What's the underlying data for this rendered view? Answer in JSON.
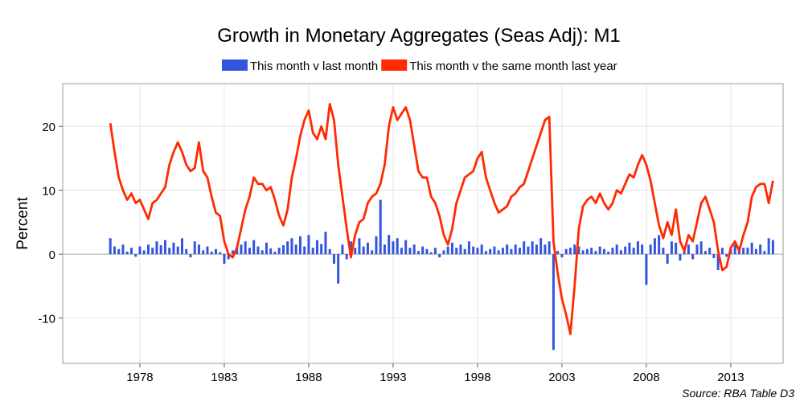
{
  "chart_data": {
    "type": "combo",
    "title": "Growth in Monetary Aggregates (Seas Adj): M1",
    "y_label": "Percent",
    "source": "Source: RBA Table D3",
    "xlim": [
      1973.43,
      2016.1
    ],
    "xticks": [
      1978,
      1983,
      1988,
      1993,
      1998,
      2003,
      2008,
      2013
    ],
    "ylim": [
      -17.1,
      26.7
    ],
    "yticks": [
      -10,
      0,
      10,
      20
    ],
    "grid": true,
    "legend": "top",
    "x": [
      1976.25,
      1976.5,
      1976.75,
      1977,
      1977.25,
      1977.5,
      1977.75,
      1978,
      1978.25,
      1978.5,
      1978.75,
      1979,
      1979.25,
      1979.5,
      1979.75,
      1980,
      1980.25,
      1980.5,
      1980.75,
      1981,
      1981.25,
      1981.5,
      1981.75,
      1982,
      1982.25,
      1982.5,
      1982.75,
      1983,
      1983.25,
      1983.5,
      1983.75,
      1984,
      1984.25,
      1984.5,
      1984.75,
      1985,
      1985.25,
      1985.5,
      1985.75,
      1986,
      1986.25,
      1986.5,
      1986.75,
      1987,
      1987.25,
      1987.5,
      1987.75,
      1988,
      1988.25,
      1988.5,
      1988.75,
      1989,
      1989.25,
      1989.5,
      1989.75,
      1990,
      1990.25,
      1990.5,
      1990.75,
      1991,
      1991.25,
      1991.5,
      1991.75,
      1992,
      1992.25,
      1992.5,
      1992.75,
      1993,
      1993.25,
      1993.5,
      1993.75,
      1994,
      1994.25,
      1994.5,
      1994.75,
      1995,
      1995.25,
      1995.5,
      1995.75,
      1996,
      1996.25,
      1996.5,
      1996.75,
      1997,
      1997.25,
      1997.5,
      1997.75,
      1998,
      1998.25,
      1998.5,
      1998.75,
      1999,
      1999.25,
      1999.5,
      1999.75,
      2000,
      2000.25,
      2000.5,
      2000.75,
      2001,
      2001.25,
      2001.5,
      2001.75,
      2002,
      2002.25,
      2002.5,
      2002.75,
      2003,
      2003.25,
      2003.5,
      2003.75,
      2004,
      2004.25,
      2004.5,
      2004.75,
      2005,
      2005.25,
      2005.5,
      2005.75,
      2006,
      2006.25,
      2006.5,
      2006.75,
      2007,
      2007.25,
      2007.5,
      2007.75,
      2008,
      2008.25,
      2008.5,
      2008.75,
      2009,
      2009.25,
      2009.5,
      2009.75,
      2010,
      2010.25,
      2010.5,
      2010.75,
      2011,
      2011.25,
      2011.5,
      2011.75,
      2012,
      2012.25,
      2012.5,
      2012.75,
      2013,
      2013.25,
      2013.5,
      2013.75,
      2014,
      2014.25,
      2014.5,
      2014.75,
      2015,
      2015.25,
      2015.5
    ],
    "series": [
      {
        "name": "This month v last month",
        "type": "bar",
        "color": "#3355dd",
        "values": [
          2.5,
          1.2,
          0.8,
          1.5,
          0.4,
          1.0,
          -0.4,
          1.2,
          0.6,
          1.5,
          1.0,
          2.0,
          1.4,
          2.2,
          1.0,
          1.8,
          1.2,
          2.5,
          0.8,
          -0.5,
          2.0,
          1.5,
          0.6,
          1.2,
          0.4,
          0.8,
          0.3,
          -1.5,
          -0.8,
          0.6,
          1.2,
          1.5,
          2.0,
          1.0,
          2.2,
          1.2,
          0.6,
          1.8,
          0.9,
          0.4,
          1.0,
          1.4,
          2.0,
          2.5,
          1.5,
          2.8,
          1.2,
          3.0,
          1.0,
          2.2,
          1.6,
          3.5,
          0.8,
          -1.5,
          -4.6,
          1.5,
          -0.8,
          2.0,
          1.0,
          2.5,
          1.2,
          1.8,
          0.6,
          2.8,
          8.5,
          1.5,
          3.0,
          2.0,
          2.5,
          1.0,
          2.2,
          1.0,
          1.5,
          0.5,
          1.2,
          0.8,
          0.3,
          1.0,
          -0.5,
          0.6,
          1.2,
          1.8,
          1.0,
          1.5,
          0.8,
          2.0,
          1.2,
          1.0,
          1.5,
          0.5,
          0.8,
          1.2,
          0.6,
          1.0,
          1.5,
          0.8,
          1.5,
          1.0,
          2.0,
          1.2,
          2.0,
          1.5,
          2.5,
          1.5,
          2.0,
          -15.0,
          0.5,
          -0.5,
          0.8,
          1.0,
          1.5,
          1.2,
          0.6,
          0.8,
          1.0,
          0.5,
          1.2,
          0.8,
          0.4,
          1.0,
          1.5,
          0.6,
          1.2,
          1.8,
          1.0,
          2.0,
          1.5,
          -4.8,
          1.5,
          2.5,
          3.0,
          1.0,
          -1.5,
          2.0,
          1.8,
          -1.0,
          0.5,
          1.5,
          -0.8,
          1.5,
          2.0,
          0.5,
          1.0,
          -0.6,
          -2.5,
          1.0,
          -0.4,
          0.8,
          1.5,
          1.2,
          1.0,
          1.0,
          1.8,
          0.8,
          1.5,
          0.5,
          2.5,
          2.2
        ]
      },
      {
        "name": "This month v the same month last year",
        "type": "line",
        "color": "#ff2a00",
        "values": [
          20.5,
          16,
          12,
          10,
          8.5,
          9.5,
          8,
          8.5,
          7,
          5.5,
          8,
          8.5,
          9.5,
          10.5,
          14,
          16,
          17.5,
          16,
          14,
          13,
          13.5,
          17.5,
          13,
          12,
          9,
          6.5,
          6,
          2,
          0,
          -0.5,
          1,
          4,
          7,
          9,
          12,
          11,
          11,
          10,
          10.5,
          8.5,
          6,
          4.5,
          7,
          12,
          15,
          18.5,
          21,
          22.5,
          19,
          18,
          20,
          18,
          23.5,
          21,
          14,
          9,
          4,
          -0.5,
          3,
          5,
          5.5,
          8,
          9,
          9.5,
          11,
          14,
          20,
          23,
          21,
          22,
          23,
          21,
          17,
          13,
          12,
          12,
          9,
          8,
          6,
          3,
          1.5,
          4,
          8,
          10,
          12,
          12.5,
          13,
          15,
          16,
          12,
          10,
          8,
          6.5,
          7,
          7.5,
          9,
          9.5,
          10.5,
          11,
          13,
          15,
          17,
          19,
          21,
          21.5,
          2,
          -3,
          -7,
          -9.5,
          -12.5,
          -5,
          4,
          7.5,
          8.5,
          9,
          8,
          9.5,
          8,
          7,
          8,
          10,
          9.5,
          11,
          12.5,
          12,
          14,
          15.5,
          14,
          11.5,
          8,
          4.5,
          2.5,
          5,
          3,
          7,
          2,
          0.5,
          3,
          2,
          5,
          8,
          9,
          7,
          5,
          0.5,
          -2.5,
          -2,
          1,
          2,
          0.5,
          3,
          5,
          9,
          10.5,
          11,
          11,
          8,
          11.5
        ]
      }
    ]
  }
}
